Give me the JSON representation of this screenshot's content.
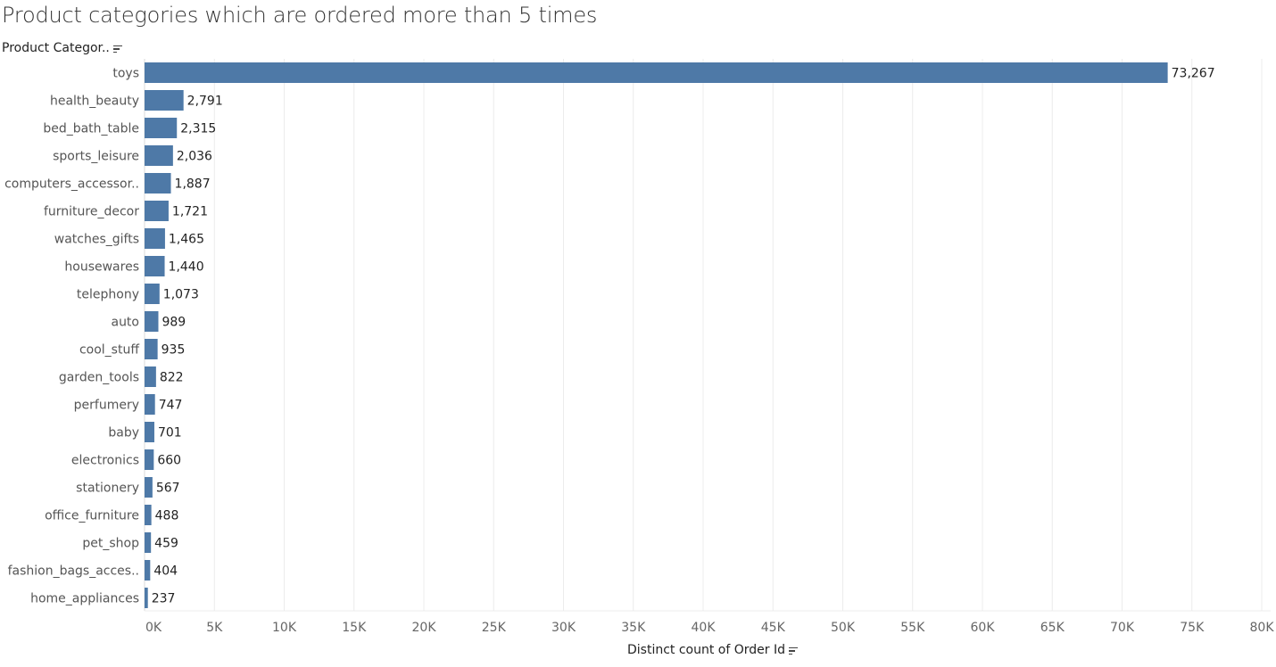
{
  "chart_data": {
    "type": "bar",
    "orientation": "horizontal",
    "title": "Product categories which are ordered more than 5 times",
    "row_header": "Product Categor..",
    "xlabel": "Distinct count of Order Id",
    "xlim": [
      0,
      80000
    ],
    "x_ticks": [
      "0K",
      "5K",
      "10K",
      "15K",
      "20K",
      "25K",
      "30K",
      "35K",
      "40K",
      "45K",
      "50K",
      "55K",
      "60K",
      "65K",
      "70K",
      "75K",
      "80K"
    ],
    "grid": true,
    "bar_color": "#4e79a7",
    "categories": [
      "toys",
      "health_beauty",
      "bed_bath_table",
      "sports_leisure",
      "computers_accessor..",
      "furniture_decor",
      "watches_gifts",
      "housewares",
      "telephony",
      "auto",
      "cool_stuff",
      "garden_tools",
      "perfumery",
      "baby",
      "electronics",
      "stationery",
      "office_furniture",
      "pet_shop",
      "fashion_bags_acces..",
      "home_appliances"
    ],
    "values": [
      73267,
      2791,
      2315,
      2036,
      1887,
      1721,
      1465,
      1440,
      1073,
      989,
      935,
      822,
      747,
      701,
      660,
      567,
      488,
      459,
      404,
      237
    ],
    "value_labels": [
      "73,267",
      "2,791",
      "2,315",
      "2,036",
      "1,887",
      "1,721",
      "1,465",
      "1,440",
      "1,073",
      "989",
      "935",
      "822",
      "747",
      "701",
      "660",
      "567",
      "488",
      "459",
      "404",
      "237"
    ]
  }
}
